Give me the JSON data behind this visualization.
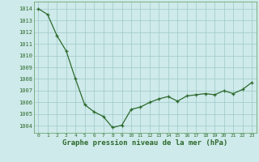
{
  "x": [
    0,
    1,
    2,
    3,
    4,
    5,
    6,
    7,
    8,
    9,
    10,
    11,
    12,
    13,
    14,
    15,
    16,
    17,
    18,
    19,
    20,
    21,
    22,
    23
  ],
  "y": [
    1014.0,
    1013.5,
    1011.7,
    1010.4,
    1008.0,
    1005.8,
    1005.2,
    1004.8,
    1003.85,
    1004.05,
    1005.4,
    1005.6,
    1006.0,
    1006.3,
    1006.5,
    1006.1,
    1006.55,
    1006.65,
    1006.75,
    1006.65,
    1007.0,
    1006.75,
    1007.1,
    1007.7
  ],
  "line_color": "#2d6a2d",
  "marker": "+",
  "marker_size": 3,
  "line_width": 0.9,
  "bg_color": "#ceeaea",
  "grid_color": "#9fc8c8",
  "xlabel": "Graphe pression niveau de la mer (hPa)",
  "xlabel_fontsize": 6.5,
  "xlabel_color": "#2d6a2d",
  "ytick_labels": [
    "1004",
    "1005",
    "1006",
    "1007",
    "1008",
    "1009",
    "1010",
    "1011",
    "1012",
    "1013",
    "1014"
  ],
  "ylim": [
    1003.4,
    1014.6
  ],
  "xlim": [
    -0.5,
    23.5
  ],
  "ytick_fontsize": 5.0,
  "xtick_fontsize": 4.5,
  "tick_color": "#2d6a2d",
  "spine_color": "#5a9a5a"
}
